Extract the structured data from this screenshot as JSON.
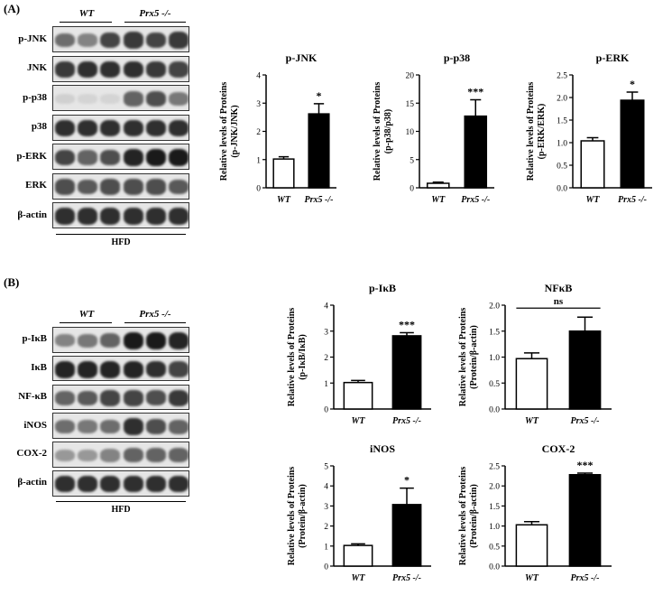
{
  "panels": [
    {
      "label": "(A)",
      "groups": [
        "WT",
        "Prx5 -/-"
      ],
      "rows": [
        "p-JNK",
        "JNK",
        "p-p38",
        "p38",
        "p-ERK",
        "ERK",
        "β-actin"
      ],
      "footer": "HFD",
      "blot_intensity": {
        "p-JNK": [
          0.55,
          0.45,
          0.75,
          0.8,
          0.75,
          0.8
        ],
        "JNK": [
          0.8,
          0.85,
          0.85,
          0.85,
          0.8,
          0.75
        ],
        "p-p38": [
          0.08,
          0.06,
          0.06,
          0.6,
          0.7,
          0.5
        ],
        "p38": [
          0.85,
          0.85,
          0.85,
          0.85,
          0.85,
          0.85
        ],
        "p-ERK": [
          0.75,
          0.6,
          0.7,
          0.9,
          0.95,
          0.95
        ],
        "ERK": [
          0.7,
          0.65,
          0.7,
          0.7,
          0.7,
          0.65
        ],
        "β-actin": [
          0.85,
          0.85,
          0.85,
          0.85,
          0.85,
          0.85
        ]
      }
    },
    {
      "label": "(B)",
      "groups": [
        "WT",
        "Prx5 -/-"
      ],
      "rows": [
        "p-IκB",
        "IκB",
        "NF-κB",
        "iNOS",
        "COX-2",
        "β-actin"
      ],
      "footer": "HFD",
      "blot_intensity": {
        "p-IκB": [
          0.45,
          0.5,
          0.6,
          0.95,
          0.95,
          0.9
        ],
        "IκB": [
          0.9,
          0.9,
          0.9,
          0.9,
          0.85,
          0.75
        ],
        "NF-κB": [
          0.6,
          0.65,
          0.75,
          0.75,
          0.7,
          0.8
        ],
        "iNOS": [
          0.55,
          0.5,
          0.55,
          0.85,
          0.7,
          0.6
        ],
        "COX-2": [
          0.35,
          0.35,
          0.45,
          0.6,
          0.6,
          0.6
        ],
        "β-actin": [
          0.85,
          0.85,
          0.85,
          0.85,
          0.85,
          0.85
        ]
      }
    }
  ],
  "chart_data": [
    {
      "type": "bar",
      "title": "p-JNK",
      "ylabel": [
        "Relative levels of Proteins",
        "(p-JNK/JNK)"
      ],
      "categories": [
        "WT",
        "Prx5 -/-"
      ],
      "values": [
        1.02,
        2.62
      ],
      "errors": [
        0.08,
        0.36
      ],
      "ylim": [
        0,
        4
      ],
      "yticks": [
        0,
        1,
        2,
        3,
        4
      ],
      "ytick_labels": [
        "0",
        "1",
        "2",
        "3",
        "4"
      ],
      "sig": "*"
    },
    {
      "type": "bar",
      "title": "p-p38",
      "ylabel": [
        "Relative levels of Proteins",
        "(p-p38/p38)"
      ],
      "categories": [
        "WT",
        "Prx5 -/-"
      ],
      "values": [
        0.8,
        12.7
      ],
      "errors": [
        0.2,
        2.9
      ],
      "ylim": [
        0,
        20
      ],
      "yticks": [
        0,
        5,
        10,
        15,
        20
      ],
      "ytick_labels": [
        "0",
        "5",
        "10",
        "15",
        "20"
      ],
      "sig": "***"
    },
    {
      "type": "bar",
      "title": "p-ERK",
      "ylabel": [
        "Relative levels of Proteins",
        "(p-ERK/ERK)"
      ],
      "categories": [
        "WT",
        "Prx5 -/-"
      ],
      "values": [
        1.04,
        1.94
      ],
      "errors": [
        0.07,
        0.18
      ],
      "ylim": [
        0,
        2.5
      ],
      "yticks": [
        0,
        0.5,
        1,
        1.5,
        2,
        2.5
      ],
      "ytick_labels": [
        "0.0",
        "0.5",
        "1.0",
        "1.5",
        "2.0",
        "2.5"
      ],
      "sig": "*"
    },
    {
      "type": "bar",
      "title": "p-IκB",
      "ylabel": [
        "Relative levels of Proteins",
        "(p-IκB/IκB)"
      ],
      "categories": [
        "WT",
        "Prx5 -/-"
      ],
      "values": [
        1.02,
        2.82
      ],
      "errors": [
        0.08,
        0.12
      ],
      "ylim": [
        0,
        4
      ],
      "yticks": [
        0,
        1,
        2,
        3,
        4
      ],
      "ytick_labels": [
        "0",
        "1",
        "2",
        "3",
        "4"
      ],
      "sig": "***"
    },
    {
      "type": "bar",
      "title": "NFκB",
      "ylabel": [
        "Relative levels of Proteins",
        "(Protein/β-actin)"
      ],
      "categories": [
        "WT",
        "Prx5 -/-"
      ],
      "values": [
        0.97,
        1.5
      ],
      "errors": [
        0.11,
        0.27
      ],
      "ylim": [
        0,
        2
      ],
      "yticks": [
        0,
        0.5,
        1,
        1.5,
        2
      ],
      "ytick_labels": [
        "0.0",
        "0.5",
        "1.0",
        "1.5",
        "2.0"
      ],
      "sig": "ns",
      "sig_bracket": true
    },
    {
      "type": "bar",
      "title": "iNOS",
      "ylabel": [
        "Relative levels of Proteins",
        "(Protein/β-actin)"
      ],
      "categories": [
        "WT",
        "Prx5 -/-"
      ],
      "values": [
        1.03,
        3.07
      ],
      "errors": [
        0.08,
        0.82
      ],
      "ylim": [
        0,
        5
      ],
      "yticks": [
        0,
        1,
        2,
        3,
        4,
        5
      ],
      "ytick_labels": [
        "0",
        "1",
        "2",
        "3",
        "4",
        "5"
      ],
      "sig": "*"
    },
    {
      "type": "bar",
      "title": "COX-2",
      "ylabel": [
        "Relative levels of Proteins",
        "(Protein/β-actin)"
      ],
      "categories": [
        "WT",
        "Prx5 -/-"
      ],
      "values": [
        1.03,
        2.28
      ],
      "errors": [
        0.08,
        0.04
      ],
      "ylim": [
        0,
        2.5
      ],
      "yticks": [
        0,
        0.5,
        1,
        1.5,
        2,
        2.5
      ],
      "ytick_labels": [
        "0.0",
        "0.5",
        "1.0",
        "1.5",
        "2.0",
        "2.5"
      ],
      "sig": "***"
    }
  ]
}
